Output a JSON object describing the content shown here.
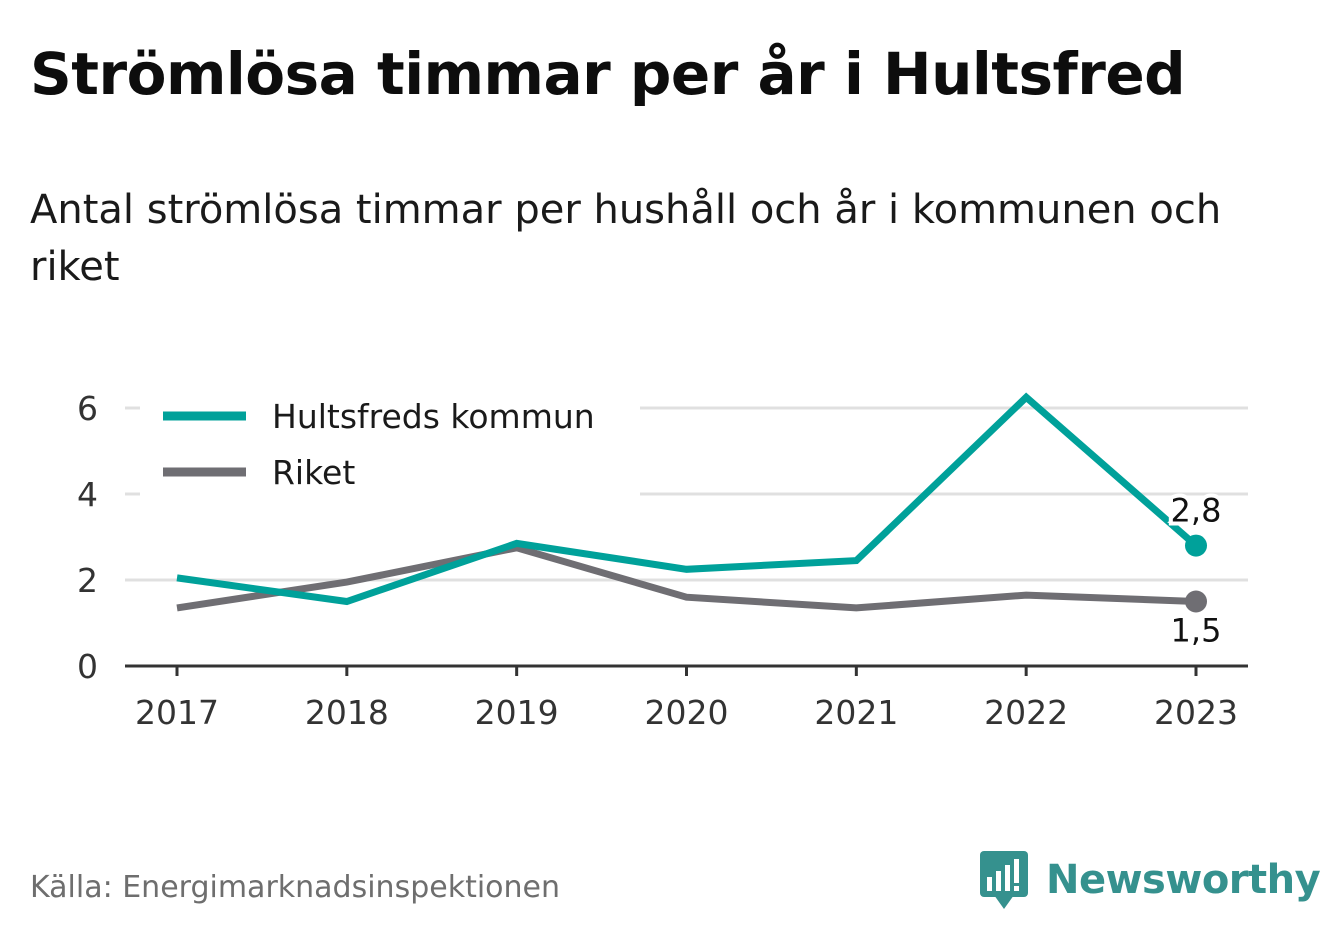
{
  "header": {
    "title": "Strömlösa timmar per år i Hultsfred",
    "subtitle": "Antal strömlösa timmar per hushåll och år i kommunen och riket"
  },
  "footer": {
    "source": "Källa: Energimarknadsinspektionen",
    "brand": "Newsworthy",
    "brand_icon": "bar-chart-speech-bubble-icon",
    "brand_color": "#35918e"
  },
  "chart_data": {
    "type": "line",
    "x": [
      "2017",
      "2018",
      "2019",
      "2020",
      "2021",
      "2022",
      "2023"
    ],
    "ylim": [
      0,
      6
    ],
    "yticks": [
      "0",
      "2",
      "4",
      "6"
    ],
    "grid": true,
    "legend_position": "top-left",
    "series": [
      {
        "name": "Hultsfreds kommun",
        "color": "#00a19a",
        "values": [
          2.05,
          1.5,
          2.85,
          2.25,
          2.45,
          6.25,
          2.8
        ],
        "end_label": "2,8",
        "end_label_position": "above"
      },
      {
        "name": "Riket",
        "color": "#6f6e73",
        "values": [
          1.35,
          1.95,
          2.75,
          1.6,
          1.35,
          1.65,
          1.5
        ],
        "end_label": "1,5",
        "end_label_position": "below"
      }
    ]
  }
}
